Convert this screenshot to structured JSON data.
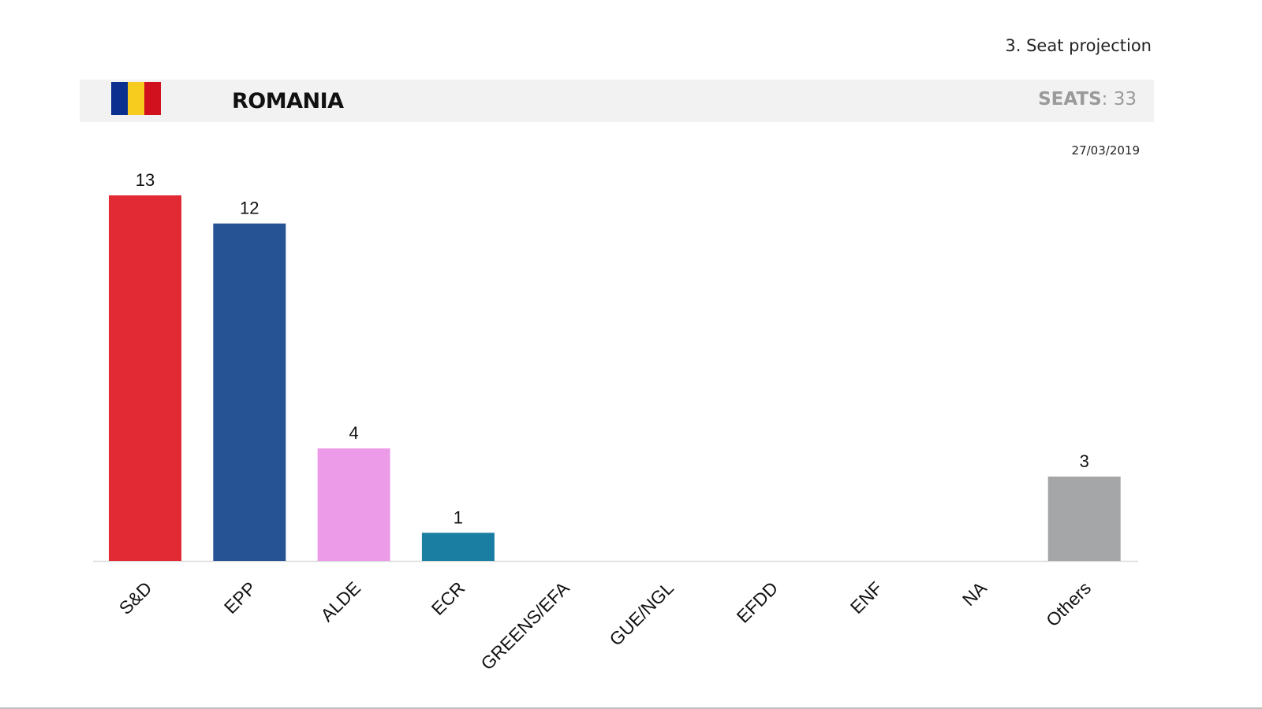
{
  "section_title": "3. Seat projection",
  "header": {
    "country": "ROMANIA",
    "seats_label": "SEATS",
    "seats_separator": ":",
    "seats_value": "33",
    "flag_colors": [
      "#0b2f8f",
      "#f7cc1f",
      "#d2111e"
    ]
  },
  "date": "27/03/2019",
  "chart_data": {
    "type": "bar",
    "title": "",
    "xlabel": "",
    "ylabel": "",
    "categories": [
      "S&D",
      "EPP",
      "ALDE",
      "ECR",
      "GREENS/EFA",
      "GUE/NGL",
      "EFDD",
      "ENF",
      "NA",
      "Others"
    ],
    "values": [
      13,
      12,
      4,
      1,
      0,
      0,
      0,
      0,
      0,
      3
    ],
    "value_labels": [
      "13",
      "12",
      "4",
      "1",
      "",
      "",
      "",
      "",
      "",
      "3"
    ],
    "colors": [
      "#e22a35",
      "#255394",
      "#eb9be8",
      "#1a7ea3",
      "#2f9a3a",
      "#9b1b1b",
      "#35b6b6",
      "#24315c",
      "#777777",
      "#a5a6a8"
    ],
    "ylim": [
      0,
      13
    ],
    "grid": false,
    "legend": "none"
  }
}
